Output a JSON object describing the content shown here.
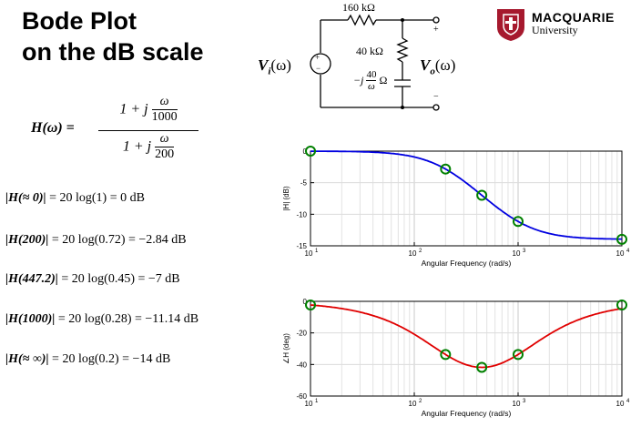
{
  "slide": {
    "title_line1": "Bode Plot",
    "title_line2": "on the dB scale"
  },
  "logo": {
    "name_line1": "MACQUARIE",
    "name_line2": "University",
    "icon": "shield-icon",
    "color": "#a6192e"
  },
  "circuit": {
    "r_series": "160 kΩ",
    "r_shunt": "40 kΩ",
    "cap_prefix": "−j",
    "cap_num": "40",
    "cap_den": "ω",
    "cap_unit": "Ω",
    "vin": "V",
    "vin_sub": "i",
    "vin_arg": "(ω)",
    "vout": "V",
    "vout_sub": "o",
    "vout_arg": "(ω)",
    "plus": "+",
    "minus": "−",
    "src_plus": "+",
    "src_minus": "−"
  },
  "transfer": {
    "lhs": "H(ω) =",
    "num_prefix": "1 + j",
    "num_frac_top": "ω",
    "num_frac_bot": "1000",
    "den_prefix": "1 + j",
    "den_frac_top": "ω",
    "den_frac_bot": "200"
  },
  "equations": [
    {
      "lhs": "|H(≈ 0)|",
      "rhs": " = 20 log(1) = 0 dB"
    },
    {
      "lhs": "|H(200)|",
      "rhs": " = 20 log(0.72) = −2.84 dB"
    },
    {
      "lhs": "|H(447.2)|",
      "rhs": " = 20 log(0.45) = −7 dB"
    },
    {
      "lhs": "|H(1000)|",
      "rhs": " = 20 log(0.28) = −11.14 dB"
    },
    {
      "lhs": "|H(≈ ∞)|",
      "rhs": " = 20 log(0.2) = −14 dB"
    }
  ],
  "chart_data": [
    {
      "type": "line",
      "xlabel": "Angular Frequency (rad/s)",
      "ylabel": "|H| (dB)",
      "xscale": "log",
      "xlim": [
        10,
        10000
      ],
      "ylim": [
        -15,
        0
      ],
      "yticks": [
        0,
        -5,
        -10,
        -15
      ],
      "xticks": [
        {
          "base": "10",
          "exp": "1"
        },
        {
          "base": "10",
          "exp": "2"
        },
        {
          "base": "10",
          "exp": "3"
        },
        {
          "base": "10",
          "exp": "4"
        }
      ],
      "grid": true,
      "line_color": "#0000e0",
      "marker_color": "#008000",
      "markers": [
        {
          "x": 10,
          "y": 0
        },
        {
          "x": 200,
          "y": -2.84
        },
        {
          "x": 447.2,
          "y": -7
        },
        {
          "x": 1000,
          "y": -11.14
        },
        {
          "x": 10000,
          "y": -13.97
        }
      ]
    },
    {
      "type": "line",
      "xlabel": "Angular Frequency (rad/s)",
      "ylabel": "∠H (deg)",
      "xscale": "log",
      "xlim": [
        10,
        10000
      ],
      "ylim": [
        -60,
        0
      ],
      "yticks": [
        0,
        -20,
        -40,
        -60
      ],
      "xticks": [
        {
          "base": "10",
          "exp": "1"
        },
        {
          "base": "10",
          "exp": "2"
        },
        {
          "base": "10",
          "exp": "3"
        },
        {
          "base": "10",
          "exp": "4"
        }
      ],
      "grid": true,
      "line_color": "#e00000",
      "marker_color": "#008000",
      "markers": [
        {
          "x": 10,
          "y": -2.3
        },
        {
          "x": 200,
          "y": -33.7
        },
        {
          "x": 447.2,
          "y": -41.8
        },
        {
          "x": 1000,
          "y": -33.7
        },
        {
          "x": 10000,
          "y": -2.3
        }
      ]
    }
  ]
}
